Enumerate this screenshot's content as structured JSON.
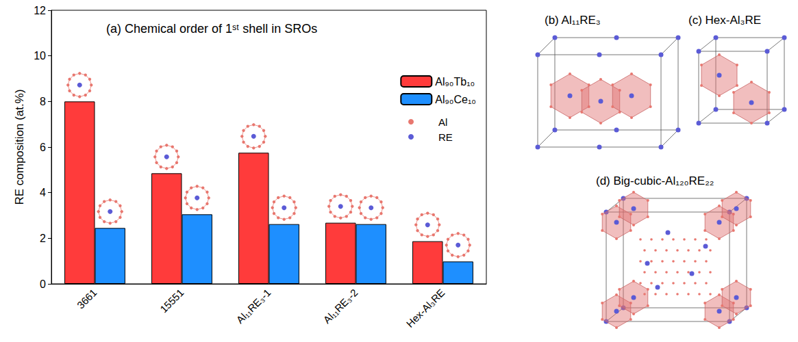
{
  "chart_data": {
    "type": "bar",
    "title": "(a) Chemical order of 1ˢᵗ shell in SROs",
    "y_label": "RE composition (at.%)",
    "categories": [
      "3661",
      "15551",
      "Al₁₁RE₃-1",
      "Al₁₁RE₃-2",
      "Hex-Al₃RE"
    ],
    "series": [
      {
        "name": "Al₉₀Tb₁₀",
        "color": "#ff3b3b",
        "values": [
          8.0,
          4.85,
          5.75,
          2.68,
          1.87
        ]
      },
      {
        "name": "Al₉₀Ce₁₀",
        "color": "#1e8fff",
        "values": [
          2.45,
          3.05,
          2.62,
          2.62,
          0.98
        ]
      }
    ],
    "ylim": [
      0,
      12
    ],
    "yticks": [
      0,
      2,
      4,
      6,
      8,
      10,
      12
    ],
    "grid": false,
    "legend": "upper right",
    "annotations": [
      {
        "text": "Al",
        "color": "#e8776f"
      },
      {
        "text": "RE",
        "color": "#5b5bd6"
      }
    ]
  },
  "structures": [
    {
      "label": "(b) Al₁₁RE₃"
    },
    {
      "label": "(c) Hex-Al₃RE"
    },
    {
      "label": "(d) Big-cubic-Al₁₂₀RE₂₂"
    }
  ]
}
